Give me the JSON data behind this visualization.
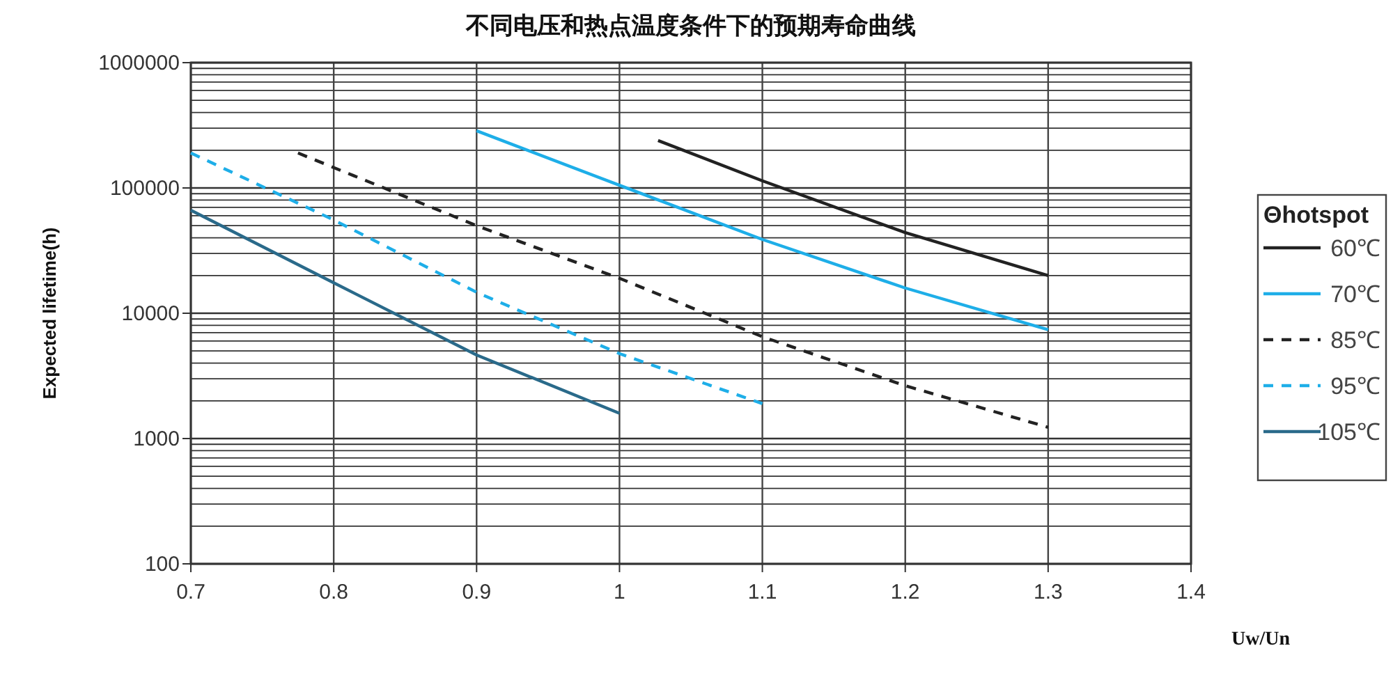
{
  "chart_data": {
    "type": "line",
    "title": "不同电压和热点温度条件下的预期寿命曲线",
    "xlabel": "Uw/Un",
    "ylabel": "Expected lifetime(h)",
    "legend_title": "Θhotspot",
    "legend": "right",
    "log": "y",
    "grid": true,
    "marker": "none",
    "xlim": [
      0.7,
      1.4
    ],
    "xticks": [
      0.7,
      0.8,
      0.9,
      1,
      1.1,
      1.2,
      1.3,
      1.4
    ],
    "ylim": [
      100,
      1000000
    ],
    "yticks": [
      100,
      1000,
      10000,
      100000,
      1000000
    ],
    "series": [
      {
        "name": "60℃",
        "color": "#222222",
        "line_style": "solid",
        "x": [
          1.027,
          1.1,
          1.2,
          1.3
        ],
        "values": [
          239000,
          114000,
          44000,
          20000
        ]
      },
      {
        "name": "70℃",
        "color": "#1eaee8",
        "line_style": "solid",
        "x": [
          0.9,
          1.0,
          1.1,
          1.2,
          1.3
        ],
        "values": [
          286000,
          105000,
          38800,
          15900,
          7400
        ]
      },
      {
        "name": "85℃",
        "color": "#222222",
        "line_style": "dashed",
        "x": [
          0.775,
          0.9,
          1.0,
          1.1,
          1.2,
          1.3
        ],
        "values": [
          190000,
          50000,
          19000,
          6500,
          2640,
          1230
        ]
      },
      {
        "name": "95℃",
        "color": "#1eaee8",
        "line_style": "dashed",
        "x": [
          0.7,
          0.8,
          0.9,
          1.0,
          1.1
        ],
        "values": [
          190000,
          55500,
          14700,
          4760,
          1900
        ]
      },
      {
        "name": "105℃",
        "color": "#2a6a8a",
        "line_style": "solid",
        "x": [
          0.7,
          0.8,
          0.9,
          1.0
        ],
        "values": [
          66400,
          17500,
          4640,
          1590
        ]
      }
    ]
  }
}
